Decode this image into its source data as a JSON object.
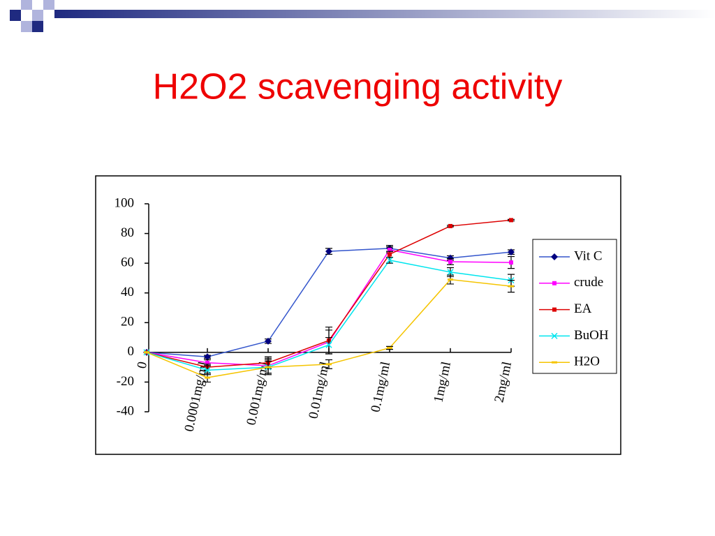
{
  "chart_data": {
    "type": "line",
    "title": "H2O2 scavenging activity",
    "categories": [
      "0",
      "0.0001mg/ml",
      "0.001mg/ml",
      "0.01mg/ml",
      "0.1mg/ml",
      "1mg/ml",
      "2mg/ml"
    ],
    "ylim": [
      -40,
      100
    ],
    "yticks": [
      -40,
      -20,
      0,
      20,
      40,
      60,
      80,
      100
    ],
    "series": [
      {
        "name": "Vit C",
        "color": "#000080",
        "line_color": "#3355cc",
        "marker": "diamond",
        "values": [
          0,
          -3,
          7.5,
          68,
          70,
          63.5,
          67.5
        ],
        "errors": [
          0,
          1,
          1.5,
          2,
          2,
          1.5,
          1.5
        ]
      },
      {
        "name": "crude",
        "color": "#ff00ff",
        "marker": "square",
        "values": [
          0,
          -7,
          -9,
          7,
          69,
          61,
          60.5
        ],
        "errors": [
          0,
          2,
          5,
          8,
          2,
          2,
          4
        ]
      },
      {
        "name": "EA",
        "color": "#dd0000",
        "marker": "square",
        "values": [
          0,
          -10,
          -7,
          8,
          66,
          85,
          89
        ],
        "errors": [
          0,
          2,
          4,
          9,
          2,
          0.5,
          0.5
        ]
      },
      {
        "name": "BuOH",
        "color": "#00e5ee",
        "marker": "x",
        "values": [
          0,
          -12,
          -10,
          5,
          62,
          54,
          48.5
        ],
        "errors": [
          0,
          3,
          4,
          5,
          2,
          3,
          4
        ]
      },
      {
        "name": "H2O",
        "color": "#f5c400",
        "marker": "bar",
        "values": [
          0,
          -17,
          -10,
          -8,
          3,
          49,
          44.5
        ],
        "errors": [
          0,
          3,
          5,
          3,
          1,
          3,
          4
        ]
      }
    ]
  }
}
